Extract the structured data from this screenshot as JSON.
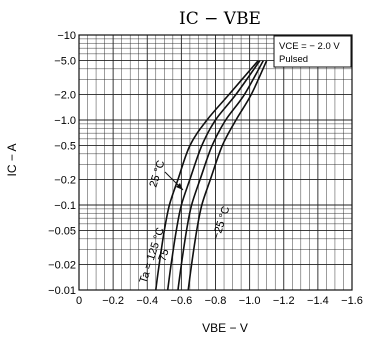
{
  "chart_data": {
    "type": "line",
    "title": "IC − VBE",
    "xlabel": "VBE − V",
    "ylabel": "IC − A",
    "x_axis": {
      "range": [
        0,
        -1.6
      ],
      "ticks": [
        0,
        -0.2,
        -0.4,
        -0.6,
        -0.8,
        -1.0,
        -1.2,
        -1.4,
        -1.6
      ],
      "tick_labels": [
        "0",
        "−0.2",
        "−0.4",
        "−0.6",
        "−0.8",
        "−1.0",
        "−1.2",
        "−1.4",
        "−1.6"
      ]
    },
    "y_axis": {
      "scale": "log",
      "range": [
        -0.01,
        -10
      ],
      "ticks": [
        -0.01,
        -0.02,
        -0.05,
        -0.1,
        -0.2,
        -0.5,
        -1.0,
        -2.0,
        -5.0,
        -10
      ],
      "tick_labels": [
        "−0.01",
        "−0.02",
        "−0.05",
        "−0.1",
        "−0.2",
        "−0.5",
        "−1.0",
        "−2.0",
        "−5.0",
        "−10"
      ]
    },
    "grid": true,
    "annotation": {
      "line1": "VCE = − 2.0 V",
      "line2": "Pulsed"
    },
    "series": [
      {
        "name": "Ta = 125 °C",
        "label": "Ta = 125 °C",
        "x": [
          -0.45,
          -0.47,
          -0.5,
          -0.53,
          -0.58,
          -0.65,
          -0.75,
          -0.88,
          -1.05
        ],
        "y": [
          -0.01,
          -0.02,
          -0.05,
          -0.1,
          -0.2,
          -0.5,
          -1.0,
          -2.0,
          -5.0
        ]
      },
      {
        "name": "75 °C",
        "label": "75",
        "x": [
          -0.52,
          -0.54,
          -0.57,
          -0.6,
          -0.65,
          -0.72,
          -0.8,
          -0.92,
          -1.06
        ],
        "y": [
          -0.01,
          -0.02,
          -0.05,
          -0.1,
          -0.2,
          -0.5,
          -1.0,
          -2.0,
          -5.0
        ]
      },
      {
        "name": "25 °C",
        "label": "25 °C",
        "x": [
          -0.58,
          -0.6,
          -0.63,
          -0.66,
          -0.71,
          -0.78,
          -0.86,
          -0.97,
          -1.08
        ],
        "y": [
          -0.01,
          -0.02,
          -0.05,
          -0.1,
          -0.2,
          -0.5,
          -1.0,
          -2.0,
          -5.0
        ]
      },
      {
        "name": "−25 °C",
        "label": "−25 °C",
        "x": [
          -0.64,
          -0.66,
          -0.69,
          -0.72,
          -0.77,
          -0.84,
          -0.92,
          -1.01,
          -1.1
        ],
        "y": [
          -0.01,
          -0.02,
          -0.05,
          -0.1,
          -0.2,
          -0.5,
          -1.0,
          -2.0,
          -5.0
        ]
      }
    ]
  }
}
